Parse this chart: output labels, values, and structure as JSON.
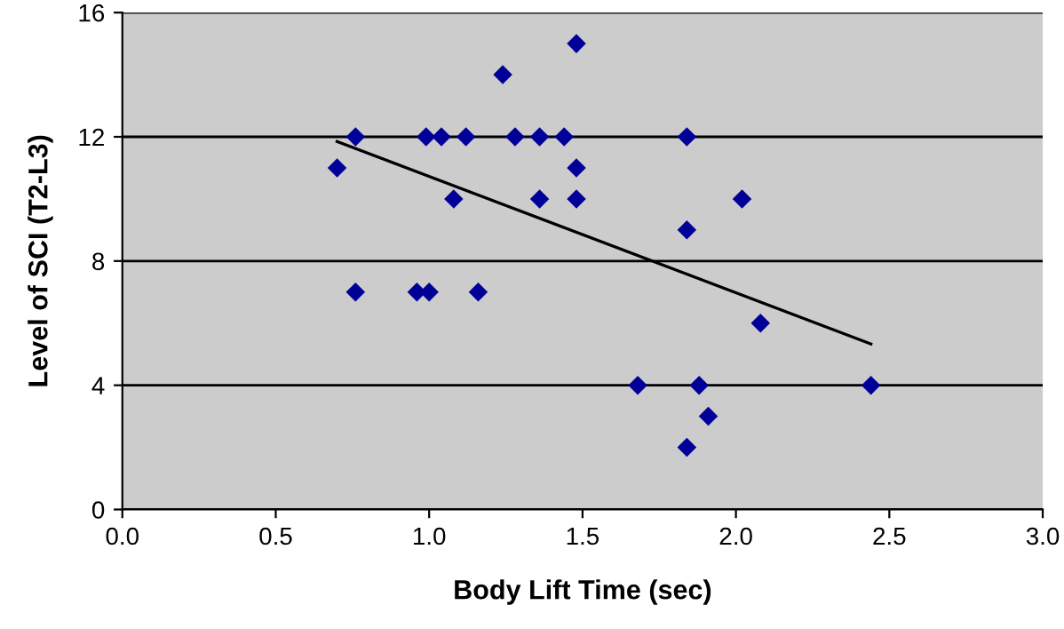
{
  "chart_data": {
    "type": "scatter",
    "xlabel": "Body Lift Time (sec)",
    "ylabel": "Level of SCI (T2-L3)",
    "xlim": [
      0,
      3
    ],
    "ylim": [
      0,
      16
    ],
    "xticks": [
      {
        "value": 0,
        "label": "0.0"
      },
      {
        "value": 0.5,
        "label": "0.5"
      },
      {
        "value": 1,
        "label": "1.0"
      },
      {
        "value": 1.5,
        "label": "1.5"
      },
      {
        "value": 2,
        "label": "2.0"
      },
      {
        "value": 2.5,
        "label": "2.5"
      },
      {
        "value": 3,
        "label": "3.0"
      }
    ],
    "yticks": [
      0,
      4,
      8,
      12,
      16
    ],
    "grid": "y",
    "marker": "diamond",
    "series": [
      {
        "color": "#000099",
        "x": [
          0.7,
          0.76,
          0.76,
          0.96,
          1.0,
          1.16,
          0.99,
          1.04,
          1.12,
          1.08,
          1.24,
          1.28,
          1.36,
          1.36,
          1.44,
          1.48,
          1.48,
          1.48,
          1.84,
          1.84,
          2.02,
          2.08,
          1.68,
          1.88,
          1.91,
          1.84,
          2.44
        ],
        "values": [
          11,
          12,
          7,
          7,
          7,
          7,
          12,
          12,
          12,
          10,
          14,
          12,
          12,
          10,
          12,
          15,
          11,
          10,
          12,
          9,
          10,
          6,
          4,
          4,
          3,
          2,
          4
        ]
      },
      {
        "type": "line",
        "color": "#000000",
        "marker": "none",
        "x": [
          0.7,
          2.44
        ],
        "values": [
          11.85,
          5.33
        ]
      }
    ]
  }
}
